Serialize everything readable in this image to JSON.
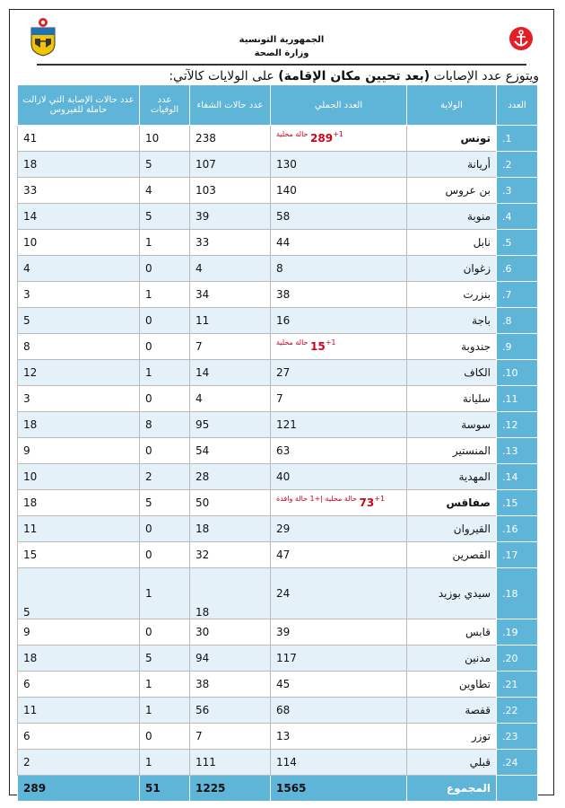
{
  "header": {
    "ministry_line1": "الجمهورية التونسية",
    "ministry_line2": "وزارة الصحة"
  },
  "intro": {
    "prefix": "ويتوزع عدد الإصابات ",
    "bold": "(بعد تحيين مكان الإقامة)",
    "suffix": " على الولايات كالآتي:"
  },
  "table": {
    "headers": {
      "index": "العدد",
      "governorate": "الولاية",
      "total": "العدد الجملي",
      "recovered": "عدد حالات الشفاء",
      "deaths": "عدد الوفيات",
      "active": "عدد حالات الإصابة التي لازالت حاملة للفيروس"
    },
    "rows": [
      {
        "index": "1.",
        "governorate": "تونس",
        "total": "289",
        "note": "+1 حالة محلية",
        "recovered": "238",
        "deaths": "10",
        "active": "41"
      },
      {
        "index": "2.",
        "governorate": "أريانة",
        "total": "130",
        "note": "",
        "recovered": "107",
        "deaths": "5",
        "active": "18"
      },
      {
        "index": "3.",
        "governorate": "بن عروس",
        "total": "140",
        "note": "",
        "recovered": "103",
        "deaths": "4",
        "active": "33"
      },
      {
        "index": "4.",
        "governorate": "منوبة",
        "total": "58",
        "note": "",
        "recovered": "39",
        "deaths": "5",
        "active": "14"
      },
      {
        "index": "5.",
        "governorate": "نابل",
        "total": "44",
        "note": "",
        "recovered": "33",
        "deaths": "1",
        "active": "10"
      },
      {
        "index": "6.",
        "governorate": "زغوان",
        "total": "8",
        "note": "",
        "recovered": "4",
        "deaths": "0",
        "active": "4"
      },
      {
        "index": "7.",
        "governorate": "بنزرت",
        "total": "38",
        "note": "",
        "recovered": "34",
        "deaths": "1",
        "active": "3"
      },
      {
        "index": "8.",
        "governorate": "باجة",
        "total": "16",
        "note": "",
        "recovered": "11",
        "deaths": "0",
        "active": "5"
      },
      {
        "index": "9.",
        "governorate": "جندوبة",
        "total": "15",
        "note": "+1 حالة محلية",
        "recovered": "7",
        "deaths": "0",
        "active": "8"
      },
      {
        "index": "10.",
        "governorate": "الكاف",
        "total": "27",
        "note": "",
        "recovered": "14",
        "deaths": "1",
        "active": "12"
      },
      {
        "index": "11.",
        "governorate": "سليانة",
        "total": "7",
        "note": "",
        "recovered": "4",
        "deaths": "0",
        "active": "3"
      },
      {
        "index": "12.",
        "governorate": "سوسة",
        "total": "121",
        "note": "",
        "recovered": "95",
        "deaths": "8",
        "active": "18"
      },
      {
        "index": "13.",
        "governorate": "المنستير",
        "total": "63",
        "note": "",
        "recovered": "54",
        "deaths": "0",
        "active": "9"
      },
      {
        "index": "14.",
        "governorate": "المهدية",
        "total": "40",
        "note": "",
        "recovered": "28",
        "deaths": "2",
        "active": "10"
      },
      {
        "index": "15.",
        "governorate": "صفاقس",
        "total": "73",
        "note": "+1 حالة محلية |+1 حالة وافدة",
        "recovered": "50",
        "deaths": "5",
        "active": "18"
      },
      {
        "index": "16.",
        "governorate": "القيروان",
        "total": "29",
        "note": "",
        "recovered": "18",
        "deaths": "0",
        "active": "11"
      },
      {
        "index": "17.",
        "governorate": "القصرين",
        "total": "47",
        "note": "",
        "recovered": "32",
        "deaths": "0",
        "active": "15"
      },
      {
        "index": "18.",
        "governorate": "سيدي بوزيد",
        "total": "24",
        "note": "",
        "recovered": "18",
        "deaths": "1",
        "active": "5"
      },
      {
        "index": "19.",
        "governorate": "قابس",
        "total": "39",
        "note": "",
        "recovered": "30",
        "deaths": "0",
        "active": "9"
      },
      {
        "index": "20.",
        "governorate": "مدنين",
        "total": "117",
        "note": "",
        "recovered": "94",
        "deaths": "5",
        "active": "18"
      },
      {
        "index": "21.",
        "governorate": "تطاوين",
        "total": "45",
        "note": "",
        "recovered": "38",
        "deaths": "1",
        "active": "6"
      },
      {
        "index": "22.",
        "governorate": "قفصة",
        "total": "68",
        "note": "",
        "recovered": "56",
        "deaths": "1",
        "active": "11"
      },
      {
        "index": "23.",
        "governorate": "توزر",
        "total": "13",
        "note": "",
        "recovered": "7",
        "deaths": "0",
        "active": "6"
      },
      {
        "index": "24.",
        "governorate": "قبلي",
        "total": "114",
        "note": "",
        "recovered": "111",
        "deaths": "1",
        "active": "2"
      }
    ],
    "totals": {
      "label": "المجموع",
      "total": "1565",
      "recovered": "1225",
      "deaths": "51",
      "active": "289"
    }
  },
  "colors": {
    "header_blue": "#5fb5d8",
    "stripe": "#e4f1f8",
    "highlight_red": "#d0021b"
  },
  "icons": {
    "left_logo": "tunisia-coat-of-arms-icon",
    "right_logo": "health-ministry-anchor-icon"
  }
}
